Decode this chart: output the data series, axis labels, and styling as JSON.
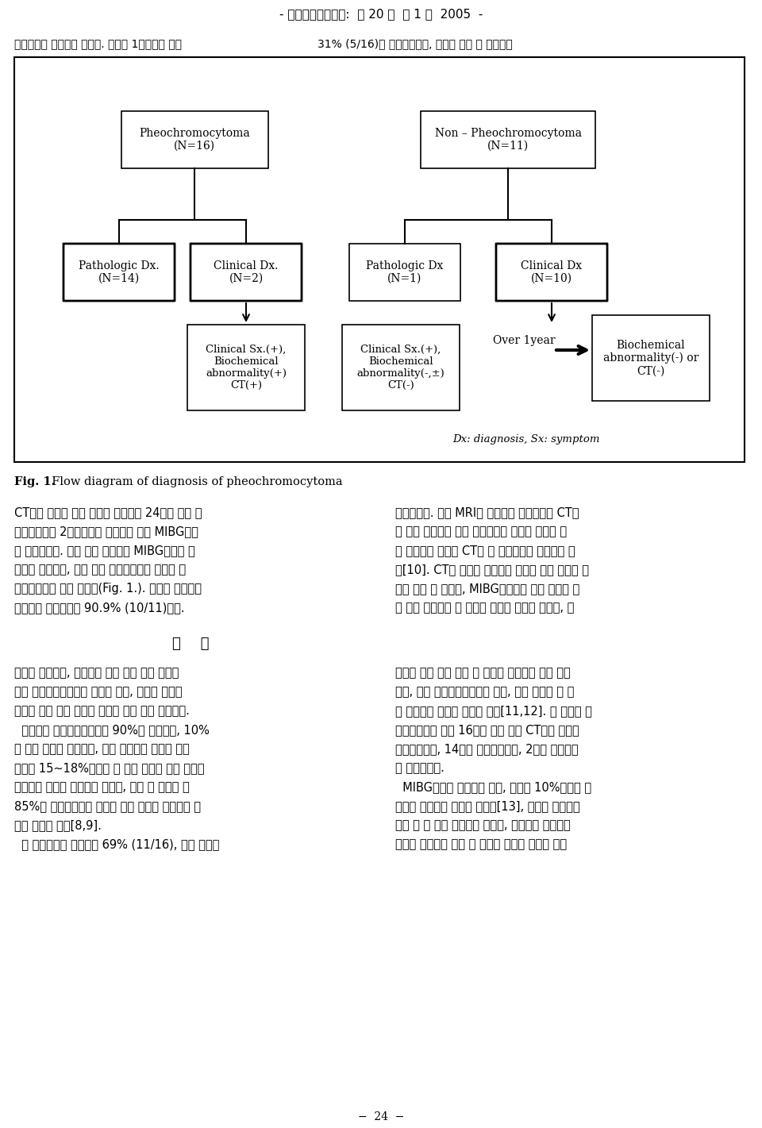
{
  "title_header": "- 대한내분비학회지:  제 20 권  제 1 호  2005  -",
  "text_line1": "이상소건이 발견되지 않았다. 나머지 1명에서는 복부",
  "text_line1_right": "31% (5/16)가 발견되었으며, 모두가 복부 및 골반에서",
  "fig_caption_bold": "Fig. 1.",
  "fig_caption_rest": "  Flow diagram of diagnosis of pheochromocytoma",
  "footnote": "Dx: diagnosis, Sx: symptom",
  "bg_color": "#ffffff",
  "border_color": "#000000",
  "text_color": "#000000",
  "body_left_1": [
    "CT에서 양측성 부신 종양이 있으면서 24시간 소변 총",
    "메타네프린은 2배미만으로 증가되어 있어 MIBG스캔",
    "을 시행하였다. 양쪽 부신 종양에서 MIBG스캔이 양",
    "성으로 나왔으나, 수술 후에 조직학적으로 전이성 소",
    "세포페암으로 진단 받았다(Fig. 1.). 이상의 결과에서",
    "특이도는 전체적으로 90.9% (10/11)였다."
  ],
  "body_right_1": [
    "발견되었다. 비록 MRI가 민감도와 특이도에서 CT보",
    "다 약간 우수하나 현재 임상에서는 종양의 위치를 찾",
    "는 우선적인 검사로 CT가 더 광범위하게 이용되고 있",
    "다[10]. CT는 종양의 해부학적 위치에 대한 정보를 제",
    "공해 줄꿐 만 아니라, MIBG스캔보다 부신 종양을 찾",
    "는 데는 민감도가 더 우수한 것으로 알려져 있으나, 골"
  ],
  "section_header": "고    찰",
  "body_left_2": [
    "병력과 신체검사, 생화학적 검사 등을 통해 임상적",
    "으로 크롬첰화세포종이 진단이 되면, 종양의 정확한",
    "위치를 찾는 것은 수술적 접근을 위해 아주 중요하다.",
    "  성인에서 크롬첰화세포종의 90%는 부신에서, 10%",
    "는 부신 외에서 발생하나, 최근 연구들의 결과를 정리",
    "해보면 15~18%정도로 더 많은 종양이 부신 외에서",
    "발생하는 것으로 보고되고 있으며, 부신 외 종양의 약",
    "85%가 횊황마아대쪽 복부와 골반 내에서 발견되는 것",
    "으로 알려져 있다[8,9].",
    "  본 연구에서는 부신에서 69% (11/16), 부신 외에서"
  ],
  "body_right_2": [
    "반이나 홉부 등의 부신 외 종양은 발견하지 못할 수도",
    "있고, 특히 크롬첰화세포종과 선종, 다른 전이성 암 등",
    "을 감별하기 어려운 단점이 있다[11,12]. 본 연구의 크",
    "롬첰화세포종 환자 16명은 모두 복부 CT에서 종양이",
    "발견되었으며, 14명은 조직학적으로, 2명은 임상적으",
    "로 확인되었다.",
    "  MIBG스캔은 민감도가 낙아, 종양의 10%이상을 발",
    "견하지 못한다는 단점은 있으나[13], 종양의 기능적인",
    "면을 볼 수 있어 특이도가 높으며, 전신적인 동위원소",
    "촬영이 가능하여 부신 외 종양의 진단에 유용한 것으"
  ]
}
